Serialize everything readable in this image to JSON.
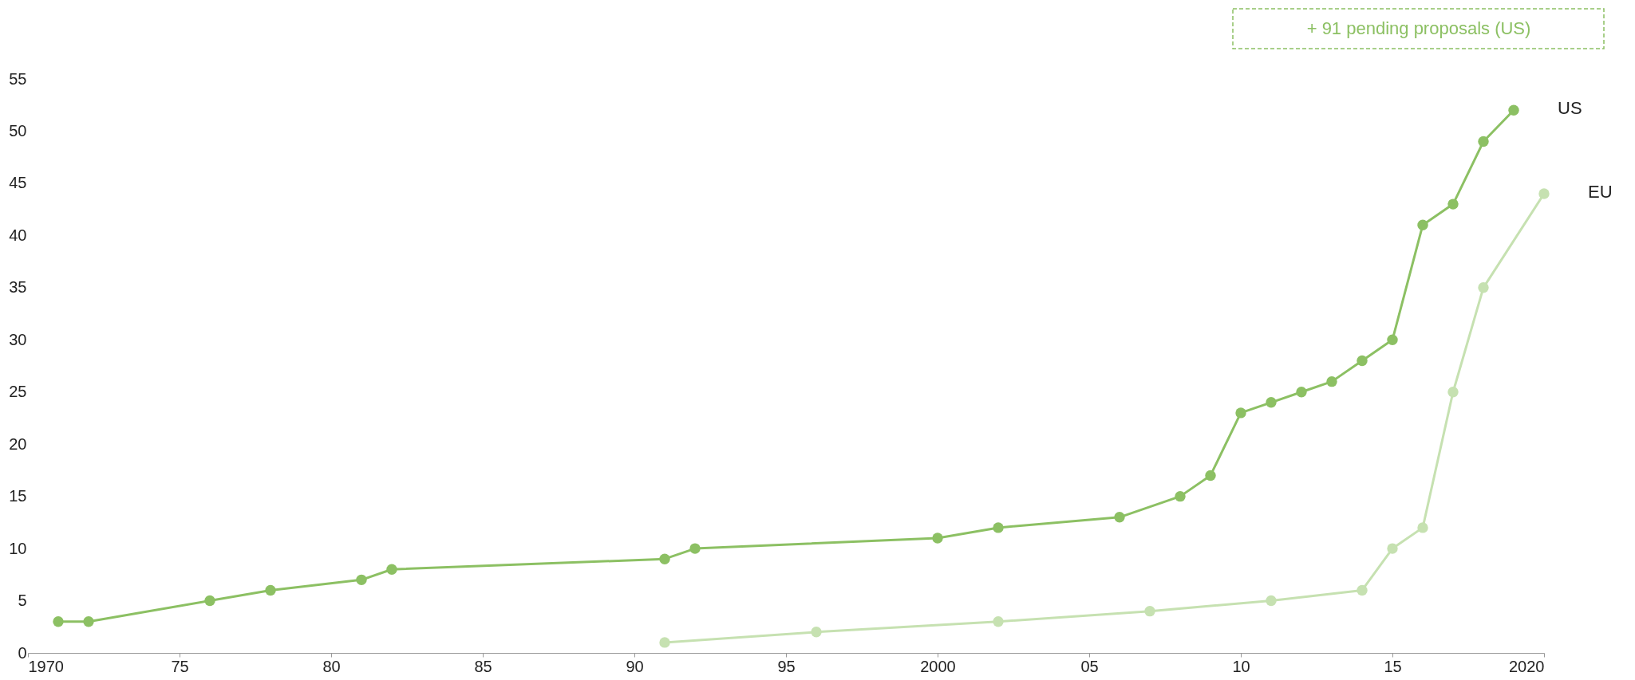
{
  "chart_data": {
    "type": "line",
    "annotations": [
      "+ 91 pending proposals (US)"
    ],
    "series": [
      {
        "name": "US",
        "color": "#8cc063",
        "x": [
          1971,
          1972,
          1976,
          1978,
          1981,
          1982,
          1991,
          1992,
          2000,
          2002,
          2006,
          2008,
          2009,
          2010,
          2011,
          2012,
          2013,
          2014,
          2015,
          2016,
          2017,
          2018,
          2019
        ],
        "values": [
          3,
          3,
          5,
          6,
          7,
          8,
          9,
          10,
          11,
          12,
          13,
          15,
          17,
          23,
          24,
          25,
          26,
          28,
          30,
          41,
          43,
          49,
          52
        ]
      },
      {
        "name": "EU",
        "color": "#c6e1b1",
        "x": [
          1991,
          1996,
          2002,
          2007,
          2011,
          2014,
          2015,
          2016,
          2017,
          2018,
          2020
        ],
        "values": [
          1,
          2,
          3,
          4,
          5,
          6,
          10,
          12,
          25,
          35,
          44
        ]
      }
    ],
    "xlim": [
      1970,
      2020
    ],
    "xticks": [
      1970,
      {
        "value": 1975,
        "label": "75"
      },
      {
        "value": 1980,
        "label": "80"
      },
      {
        "value": 1985,
        "label": "85"
      },
      {
        "value": 1990,
        "label": "90"
      },
      {
        "value": 1995,
        "label": "95"
      },
      2000,
      {
        "value": 2005,
        "label": "05"
      },
      {
        "value": 2010,
        "label": "10"
      },
      {
        "value": 2015,
        "label": "15"
      },
      2020
    ],
    "ylim": [
      0,
      55
    ],
    "yticks": [
      0,
      5,
      10,
      15,
      20,
      25,
      30,
      35,
      40,
      45,
      50,
      55
    ],
    "grid": false,
    "legend": false,
    "marker": "circle",
    "line_style": "solid"
  }
}
